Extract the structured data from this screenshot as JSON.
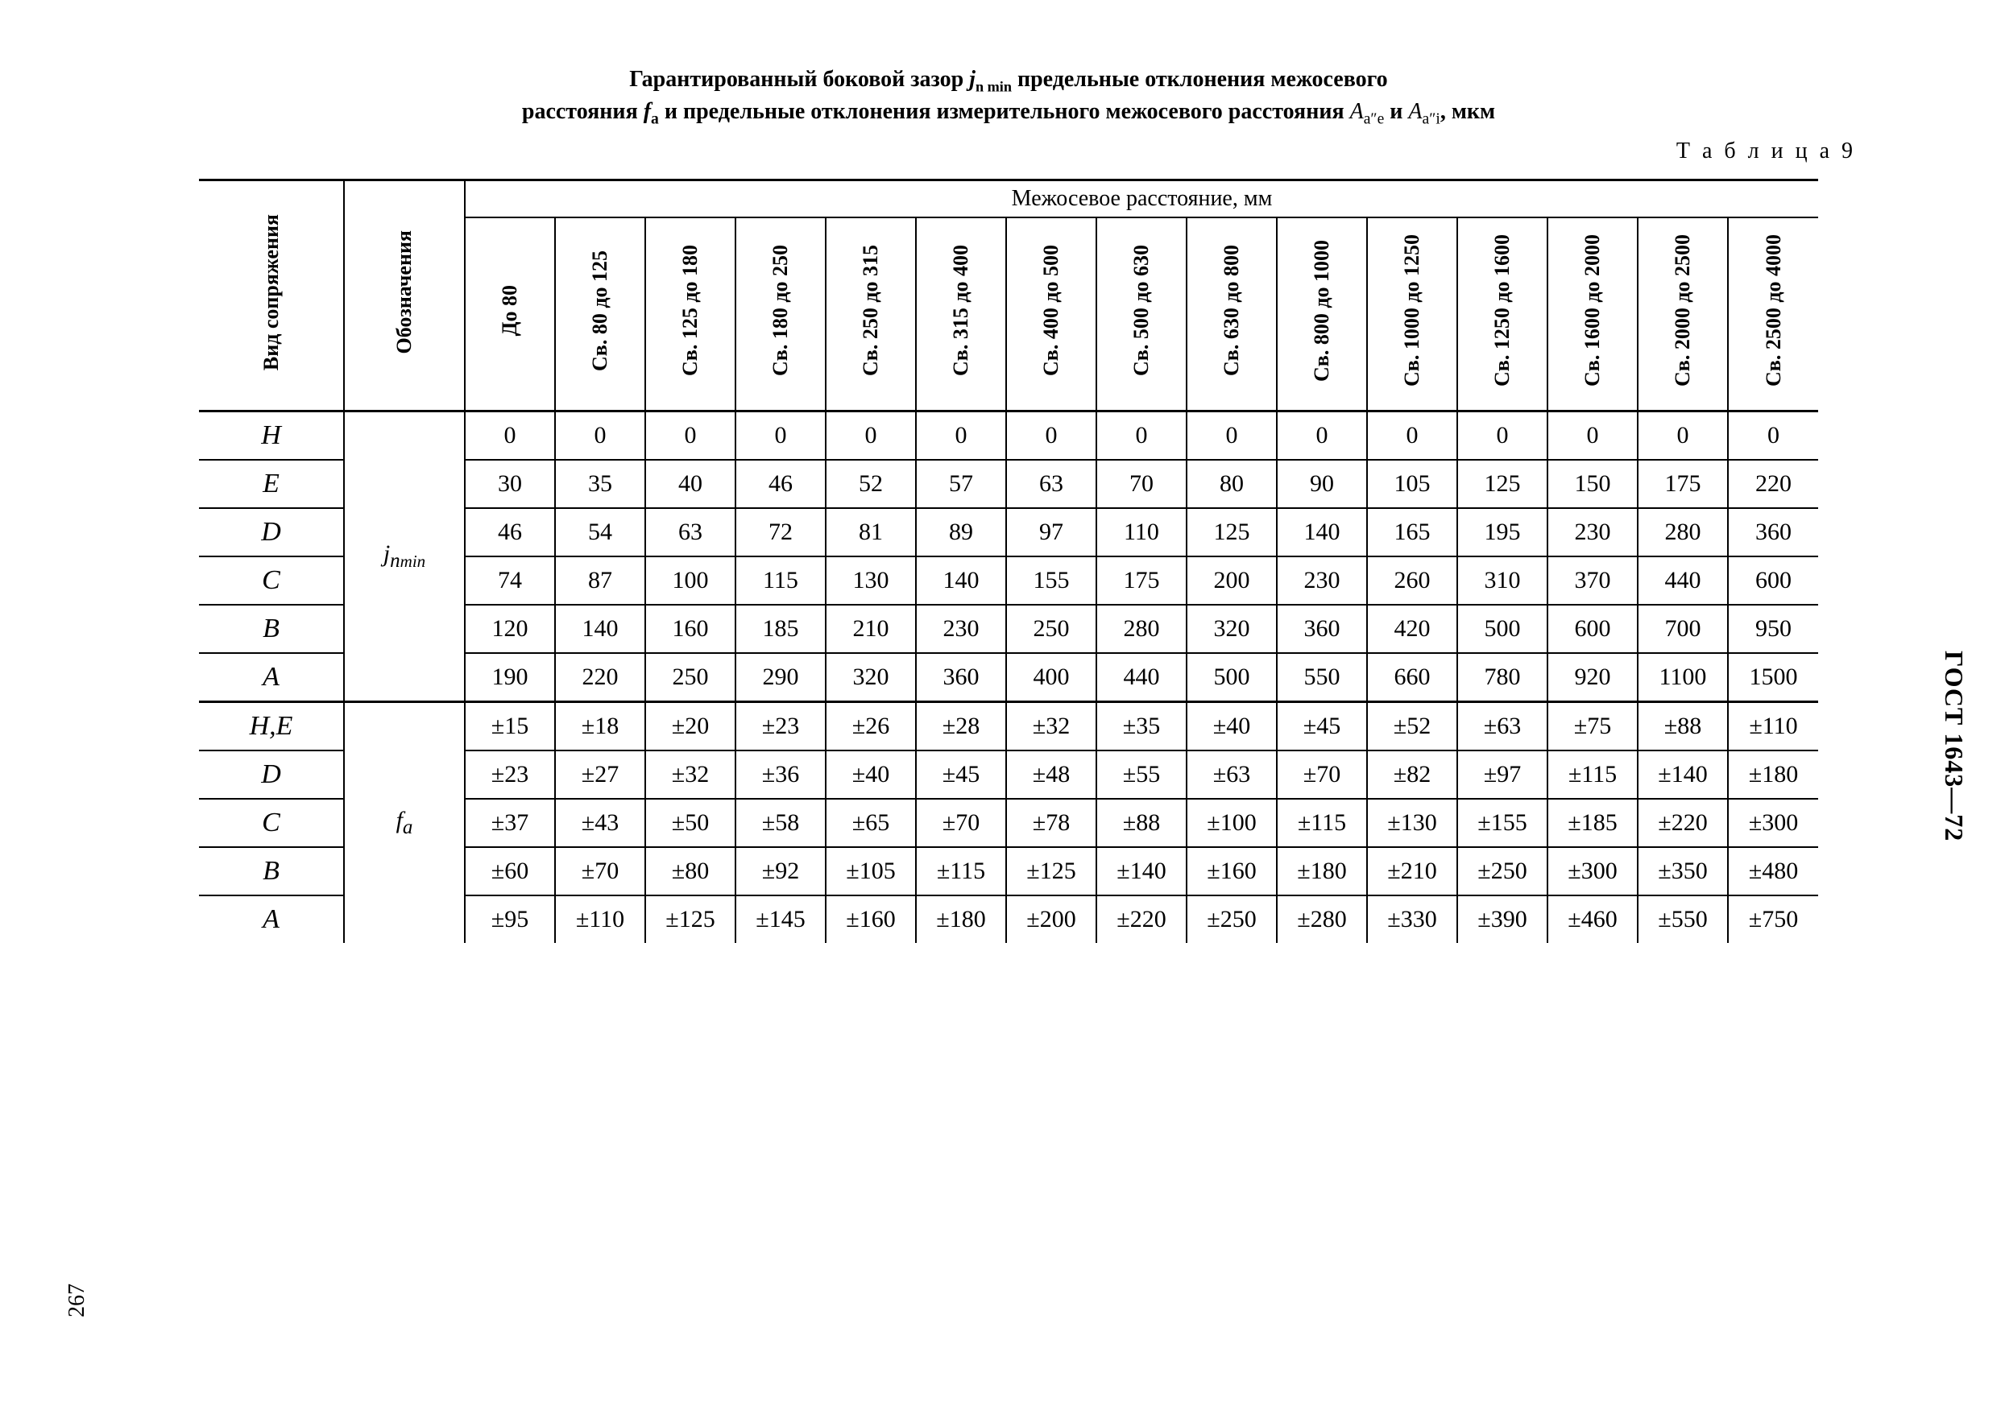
{
  "title": {
    "line1_pre": "Гарантированный боковой зазор ",
    "sym1": "j",
    "sym1_sub": "n min",
    "line1_post": " предельные отклонения межосевого",
    "line2_pre": "расстояния ",
    "sym2": "f",
    "sym2_sub": "a",
    "line2_mid": " и предельные отклонения измерительного межосевого  расстояния ",
    "sym3": "A",
    "sym3_sub": "a″e",
    "line2_and": " и ",
    "sym4": "A",
    "sym4_sub": "a″i",
    "line2_post": ", мкм"
  },
  "table_number": "Т а б л и ц а  9",
  "header_span": "Межосевое  расстояние,  мм",
  "head_col1": "Вид\nсопряжения",
  "head_col2": "Обозначения",
  "distance_cols": [
    "До  80",
    "Св.  80\nдо  125",
    "Св.  125\nдо  180",
    "Св.  180\nдо  250",
    "Св.  250\nдо  315",
    "Св.  315\nдо  400",
    "Св.  400\nдо  500",
    "Св.  500\nдо  630",
    "Св.  630\nдо  800",
    "Св.  800\nдо  1000",
    "Св.  1000\nдо  1250",
    "Св.  1250\nдо  1600",
    "Св.  1600\nдо  2000",
    "Св.  2000\nдо  2500",
    "Св.  2500\nдо  4000"
  ],
  "group1": {
    "symbol_html": "j<sub>n</sub><sub style='font-size:0.7em'>min</sub>",
    "rows": [
      {
        "label": "H",
        "v": [
          "0",
          "0",
          "0",
          "0",
          "0",
          "0",
          "0",
          "0",
          "0",
          "0",
          "0",
          "0",
          "0",
          "0",
          "0"
        ]
      },
      {
        "label": "E",
        "v": [
          "30",
          "35",
          "40",
          "46",
          "52",
          "57",
          "63",
          "70",
          "80",
          "90",
          "105",
          "125",
          "150",
          "175",
          "220"
        ]
      },
      {
        "label": "D",
        "v": [
          "46",
          "54",
          "63",
          "72",
          "81",
          "89",
          "97",
          "110",
          "125",
          "140",
          "165",
          "195",
          "230",
          "280",
          "360"
        ]
      },
      {
        "label": "C",
        "v": [
          "74",
          "87",
          "100",
          "115",
          "130",
          "140",
          "155",
          "175",
          "200",
          "230",
          "260",
          "310",
          "370",
          "440",
          "600"
        ]
      },
      {
        "label": "B",
        "v": [
          "120",
          "140",
          "160",
          "185",
          "210",
          "230",
          "250",
          "280",
          "320",
          "360",
          "420",
          "500",
          "600",
          "700",
          "950"
        ]
      },
      {
        "label": "A",
        "v": [
          "190",
          "220",
          "250",
          "290",
          "320",
          "360",
          "400",
          "440",
          "500",
          "550",
          "660",
          "780",
          "920",
          "1100",
          "1500"
        ]
      }
    ]
  },
  "group2": {
    "symbol_html": "f<sub>a</sub>",
    "rows": [
      {
        "label": "H,E",
        "v": [
          "±15",
          "±18",
          "±20",
          "±23",
          "±26",
          "±28",
          "±32",
          "±35",
          "±40",
          "±45",
          "±52",
          "±63",
          "±75",
          "±88",
          "±110"
        ]
      },
      {
        "label": "D",
        "v": [
          "±23",
          "±27",
          "±32",
          "±36",
          "±40",
          "±45",
          "±48",
          "±55",
          "±63",
          "±70",
          "±82",
          "±97",
          "±115",
          "±140",
          "±180"
        ]
      },
      {
        "label": "C",
        "v": [
          "±37",
          "±43",
          "±50",
          "±58",
          "±65",
          "±70",
          "±78",
          "±88",
          "±100",
          "±115",
          "±130",
          "±155",
          "±185",
          "±220",
          "±300"
        ]
      },
      {
        "label": "B",
        "v": [
          "±60",
          "±70",
          "±80",
          "±92",
          "±105",
          "±115",
          "±125",
          "±140",
          "±160",
          "±180",
          "±210",
          "±250",
          "±300",
          "±350",
          "±480"
        ]
      },
      {
        "label": "A",
        "v": [
          "±95",
          "±110",
          "±125",
          "±145",
          "±160",
          "±180",
          "±200",
          "±220",
          "±250",
          "±280",
          "±330",
          "±390",
          "±460",
          "±550",
          "±750"
        ]
      }
    ]
  },
  "page_number": "267",
  "gost": "ГОСТ 1643—72"
}
